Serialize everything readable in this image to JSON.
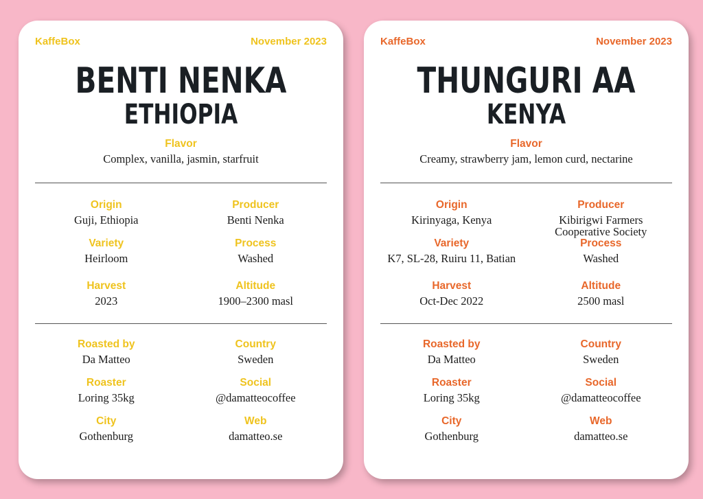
{
  "cards": [
    {
      "brand": "KaffeBox",
      "date": "November 2023",
      "coffee_name": "BENTI NENKA",
      "country_heading": "ETHIOPIA",
      "flavor_label": "Flavor",
      "flavor": "Complex, vanilla, jasmin, starfruit",
      "details": {
        "origin_label": "Origin",
        "origin": "Guji, Ethiopia",
        "producer_label": "Producer",
        "producer": "Benti Nenka",
        "variety_label": "Variety",
        "variety": "Heirloom",
        "process_label": "Process",
        "process": "Washed",
        "harvest_label": "Harvest",
        "harvest": "2023",
        "altitude_label": "Altitude",
        "altitude": "1900–2300 masl"
      },
      "roaster": {
        "roasted_by_label": "Roasted by",
        "roasted_by": "Da Matteo",
        "country_label": "Country",
        "country": "Sweden",
        "roaster_label": "Roaster",
        "roaster": "Loring 35kg",
        "social_label": "Social",
        "social": "@damatteocoffee",
        "city_label": "City",
        "city": "Gothenburg",
        "web_label": "Web",
        "web": "damatteo.se"
      },
      "accent_color": "#efc31e"
    },
    {
      "brand": "KaffeBox",
      "date": "November 2023",
      "coffee_name": "THUNGURI AA",
      "country_heading": "KENYA",
      "flavor_label": "Flavor",
      "flavor": "Creamy, strawberry jam, lemon curd, nectarine",
      "details": {
        "origin_label": "Origin",
        "origin": "Kirinyaga, Kenya",
        "producer_label": "Producer",
        "producer_line1": "Kibirigwi Farmers",
        "producer_line2": "Cooperative Society",
        "variety_label": "Variety",
        "variety": "K7, SL-28, Ruiru 11, Batian",
        "process_label": "Process",
        "process": "Washed",
        "harvest_label": "Harvest",
        "harvest": "Oct-Dec 2022",
        "altitude_label": "Altitude",
        "altitude": "2500 masl"
      },
      "roaster": {
        "roasted_by_label": "Roasted by",
        "roasted_by": "Da Matteo",
        "country_label": "Country",
        "country": "Sweden",
        "roaster_label": "Roaster",
        "roaster": "Loring 35kg",
        "social_label": "Social",
        "social": "@damatteocoffee",
        "city_label": "City",
        "city": "Gothenburg",
        "web_label": "Web",
        "web": "damatteo.se"
      },
      "accent_color": "#e8672a"
    }
  ]
}
